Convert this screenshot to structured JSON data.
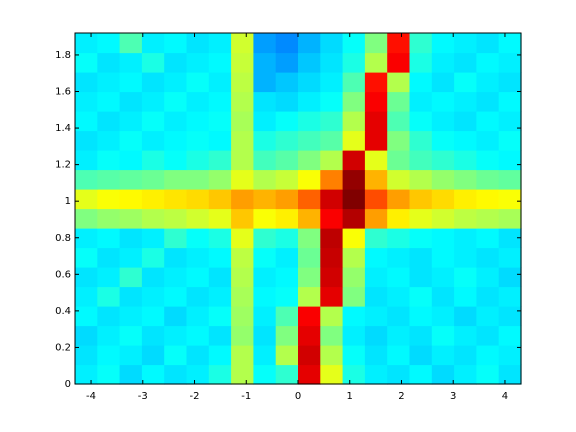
{
  "chart_data": {
    "type": "heatmap",
    "colormap": "jet",
    "clim": [
      0,
      1
    ],
    "xlim": [
      -4.31,
      4.31
    ],
    "ylim": [
      0,
      1.92
    ],
    "xticks": [
      -4,
      -3,
      -2,
      -1,
      0,
      1,
      2,
      3,
      4
    ],
    "yticks": [
      0,
      0.2,
      0.4,
      0.6,
      0.8,
      1,
      1.2,
      1.4,
      1.6,
      1.8
    ],
    "z": [
      [
        0.36,
        0.38,
        0.34,
        0.37,
        0.35,
        0.36,
        0.4,
        0.55,
        0.38,
        0.42,
        0.9,
        0.6,
        0.4,
        0.36,
        0.35,
        0.37,
        0.34,
        0.36,
        0.38,
        0.35
      ],
      [
        0.35,
        0.37,
        0.36,
        0.34,
        0.38,
        0.35,
        0.37,
        0.55,
        0.36,
        0.55,
        0.92,
        0.55,
        0.38,
        0.35,
        0.37,
        0.34,
        0.36,
        0.35,
        0.37,
        0.36
      ],
      [
        0.34,
        0.36,
        0.38,
        0.35,
        0.36,
        0.37,
        0.35,
        0.52,
        0.35,
        0.5,
        0.9,
        0.5,
        0.36,
        0.34,
        0.36,
        0.35,
        0.38,
        0.36,
        0.35,
        0.37
      ],
      [
        0.37,
        0.35,
        0.36,
        0.37,
        0.34,
        0.36,
        0.38,
        0.53,
        0.36,
        0.45,
        0.88,
        0.55,
        0.37,
        0.36,
        0.35,
        0.37,
        0.36,
        0.34,
        0.36,
        0.35
      ],
      [
        0.36,
        0.4,
        0.35,
        0.36,
        0.37,
        0.35,
        0.36,
        0.54,
        0.37,
        0.38,
        0.55,
        0.9,
        0.5,
        0.35,
        0.36,
        0.38,
        0.35,
        0.37,
        0.35,
        0.36
      ],
      [
        0.35,
        0.36,
        0.42,
        0.35,
        0.36,
        0.37,
        0.35,
        0.55,
        0.36,
        0.37,
        0.5,
        0.92,
        0.52,
        0.36,
        0.37,
        0.35,
        0.36,
        0.38,
        0.36,
        0.34
      ],
      [
        0.38,
        0.35,
        0.36,
        0.4,
        0.35,
        0.36,
        0.37,
        0.56,
        0.38,
        0.36,
        0.48,
        0.93,
        0.55,
        0.37,
        0.36,
        0.35,
        0.37,
        0.36,
        0.35,
        0.36
      ],
      [
        0.36,
        0.37,
        0.35,
        0.36,
        0.42,
        0.38,
        0.4,
        0.6,
        0.42,
        0.4,
        0.5,
        0.94,
        0.62,
        0.42,
        0.4,
        0.38,
        0.37,
        0.36,
        0.37,
        0.35
      ],
      [
        0.5,
        0.52,
        0.53,
        0.55,
        0.56,
        0.58,
        0.6,
        0.68,
        0.62,
        0.64,
        0.7,
        0.88,
        0.95,
        0.72,
        0.64,
        0.6,
        0.58,
        0.56,
        0.55,
        0.54
      ],
      [
        0.6,
        0.62,
        0.63,
        0.64,
        0.65,
        0.66,
        0.68,
        0.72,
        0.7,
        0.72,
        0.78,
        0.92,
        1,
        0.8,
        0.72,
        0.68,
        0.66,
        0.64,
        0.63,
        0.62
      ],
      [
        0.45,
        0.46,
        0.47,
        0.48,
        0.5,
        0.5,
        0.52,
        0.6,
        0.55,
        0.57,
        0.62,
        0.75,
        0.98,
        0.7,
        0.58,
        0.55,
        0.52,
        0.5,
        0.48,
        0.47
      ],
      [
        0.36,
        0.38,
        0.37,
        0.4,
        0.38,
        0.4,
        0.42,
        0.55,
        0.44,
        0.46,
        0.5,
        0.55,
        0.92,
        0.6,
        0.48,
        0.44,
        0.42,
        0.4,
        0.38,
        0.37
      ],
      [
        0.35,
        0.36,
        0.38,
        0.36,
        0.37,
        0.38,
        0.37,
        0.55,
        0.4,
        0.42,
        0.44,
        0.46,
        0.6,
        0.9,
        0.5,
        0.42,
        0.38,
        0.37,
        0.36,
        0.38
      ],
      [
        0.37,
        0.35,
        0.36,
        0.38,
        0.36,
        0.37,
        0.38,
        0.54,
        0.36,
        0.38,
        0.4,
        0.42,
        0.55,
        0.9,
        0.45,
        0.38,
        0.36,
        0.35,
        0.37,
        0.36
      ],
      [
        0.36,
        0.37,
        0.35,
        0.36,
        0.38,
        0.36,
        0.37,
        0.55,
        0.35,
        0.34,
        0.36,
        0.38,
        0.5,
        0.88,
        0.48,
        0.36,
        0.37,
        0.36,
        0.35,
        0.37
      ],
      [
        0.35,
        0.36,
        0.37,
        0.35,
        0.36,
        0.38,
        0.36,
        0.56,
        0.3,
        0.32,
        0.34,
        0.36,
        0.45,
        0.86,
        0.55,
        0.37,
        0.35,
        0.38,
        0.36,
        0.35
      ],
      [
        0.38,
        0.35,
        0.36,
        0.4,
        0.35,
        0.36,
        0.37,
        0.57,
        0.3,
        0.28,
        0.32,
        0.35,
        0.4,
        0.55,
        0.88,
        0.4,
        0.36,
        0.35,
        0.37,
        0.36
      ],
      [
        0.36,
        0.37,
        0.45,
        0.36,
        0.37,
        0.35,
        0.36,
        0.58,
        0.28,
        0.26,
        0.3,
        0.34,
        0.38,
        0.5,
        0.86,
        0.42,
        0.37,
        0.36,
        0.35,
        0.37
      ]
    ]
  }
}
